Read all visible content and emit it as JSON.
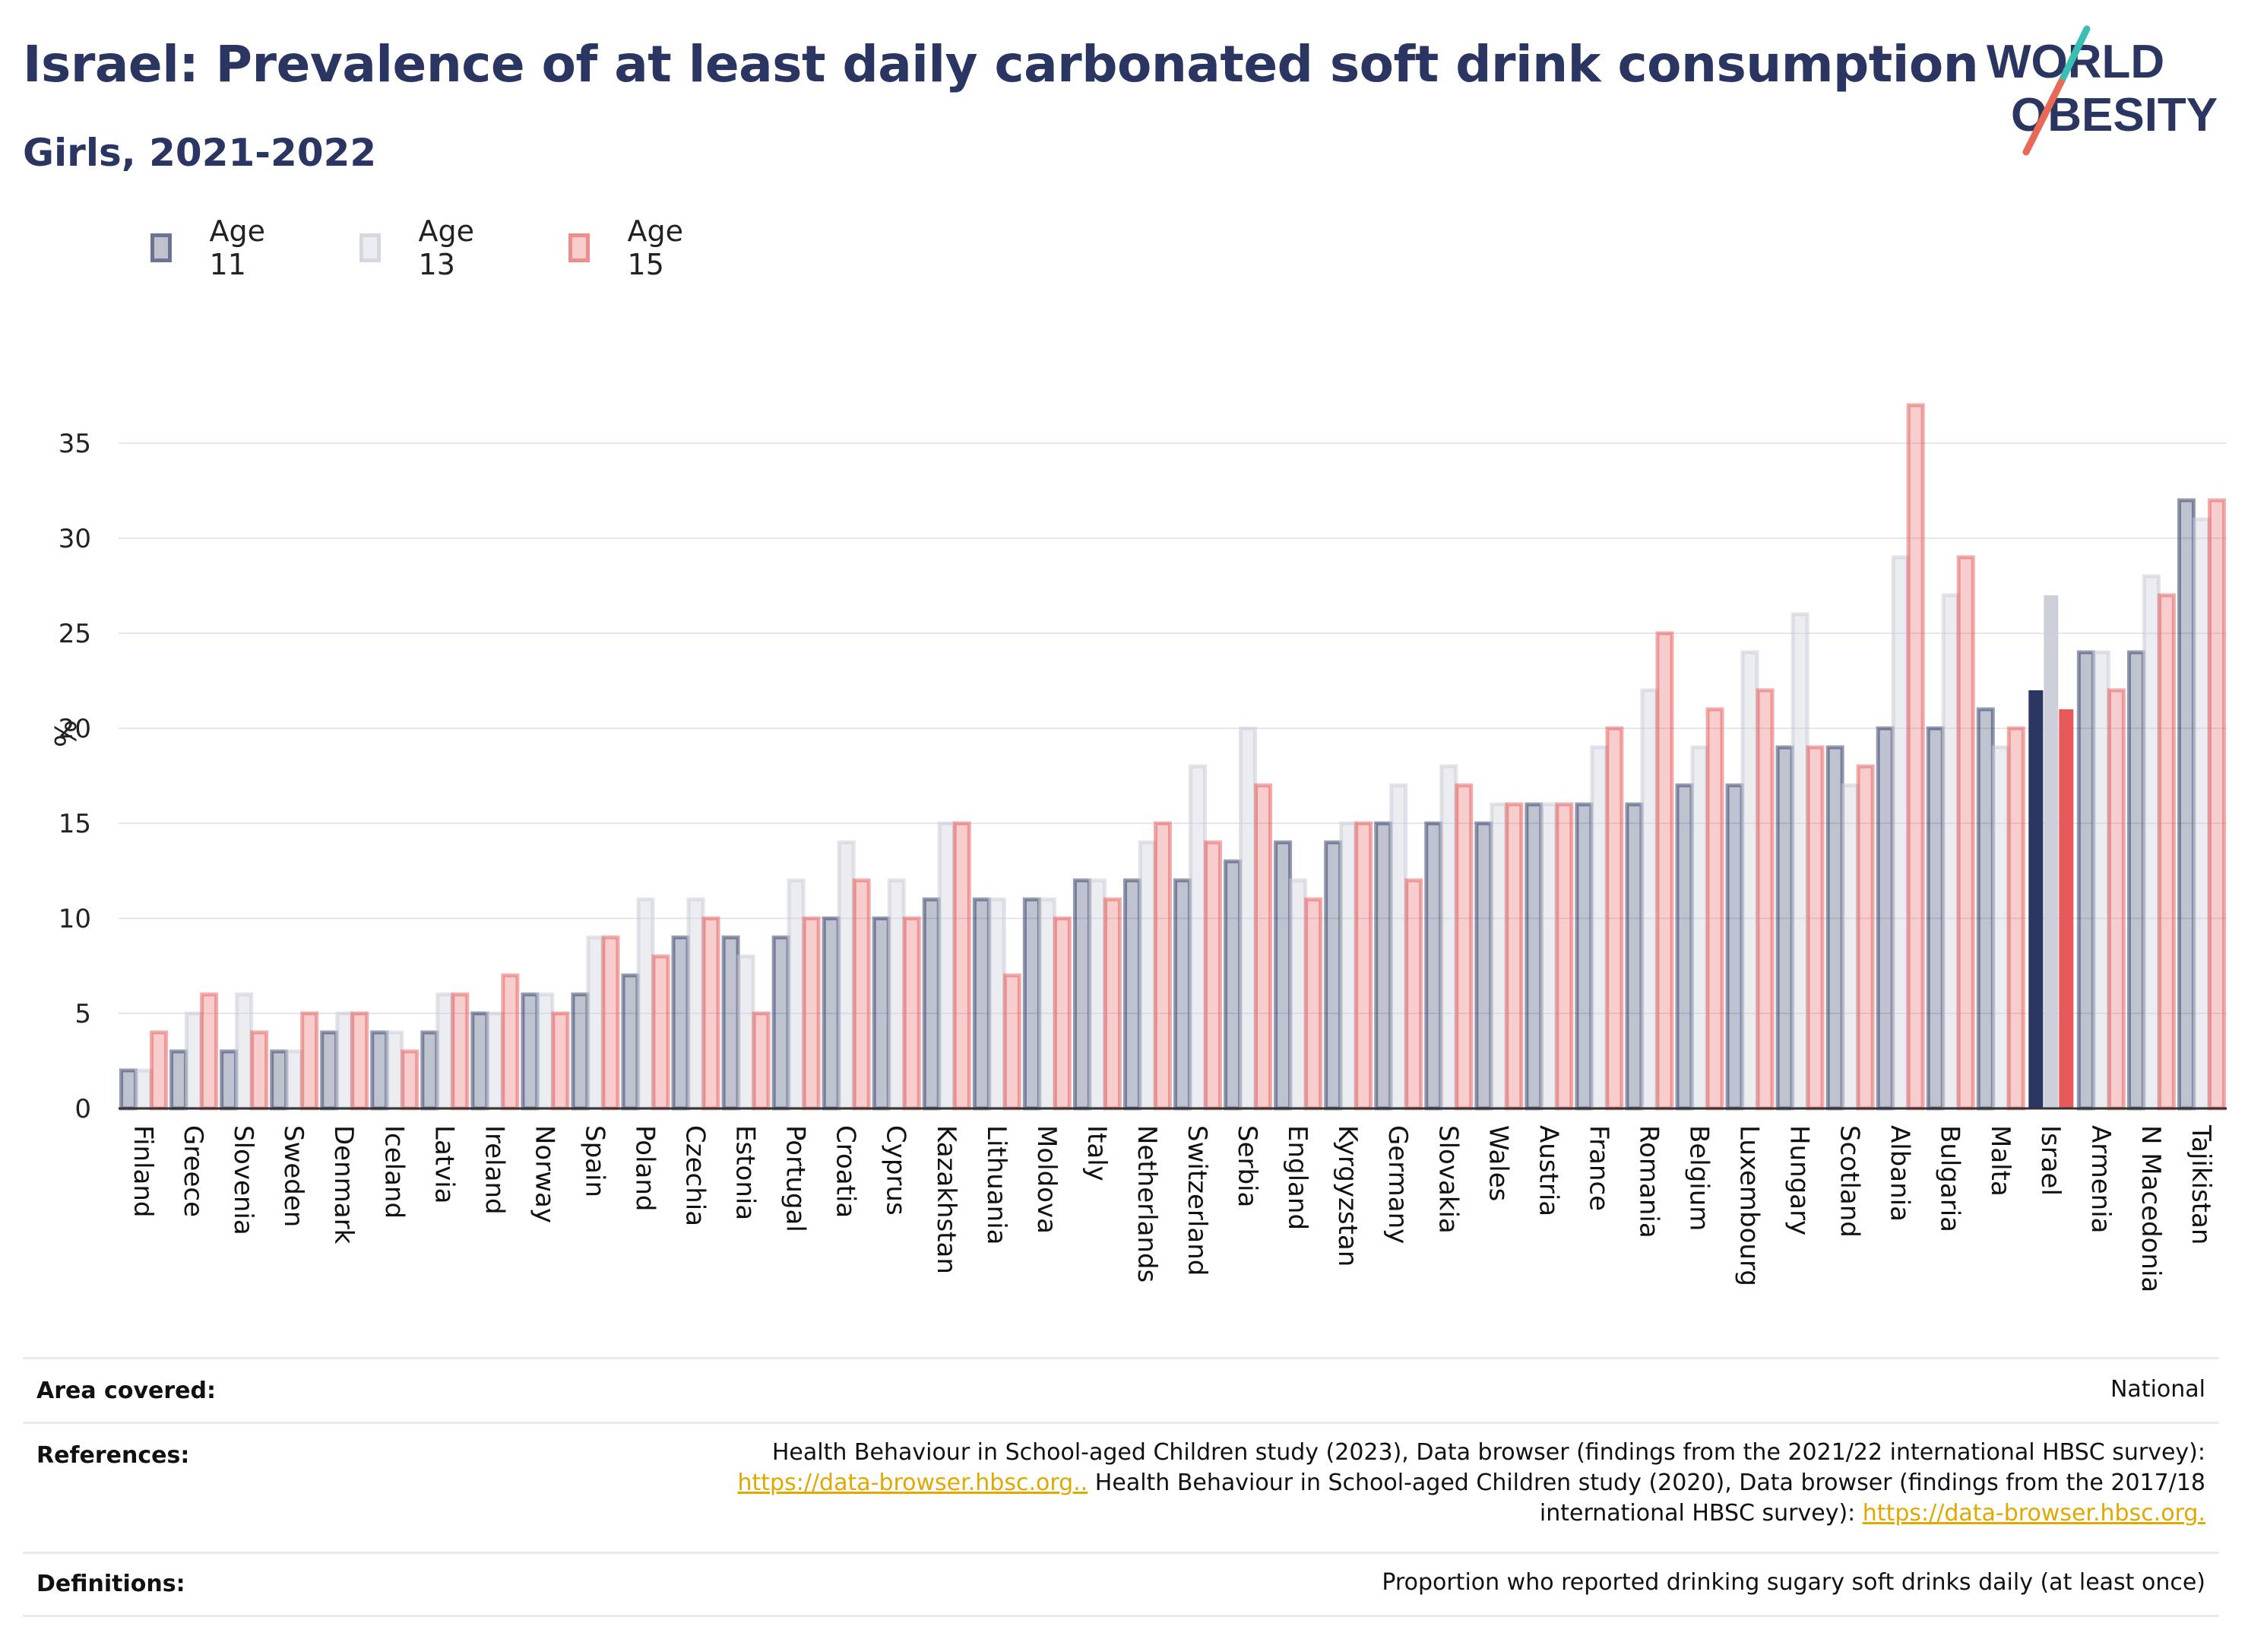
{
  "header": {
    "title": "Israel: Prevalence of at least daily carbonated soft drink consumption",
    "subtitle": "Girls, 2021-2022"
  },
  "logo": {
    "line1": "WORLD",
    "line2": "OBESITY"
  },
  "legend": [
    {
      "label": "Age 11"
    },
    {
      "label": "Age 13"
    },
    {
      "label": "Age 15"
    }
  ],
  "chart_data": {
    "type": "bar",
    "ylabel": "%",
    "ylim": [
      0,
      38
    ],
    "yticks": [
      0,
      5,
      10,
      15,
      20,
      25,
      30,
      35
    ],
    "grid": true,
    "legend_position": "top-left",
    "highlight_category": "Israel",
    "colors": {
      "age11": "#2a3561",
      "age13": "#c8cad6",
      "age15": "#e85a5a",
      "grid": "#e6e7ee",
      "axis": "#333333"
    },
    "categories": [
      "Finland",
      "Greece",
      "Slovenia",
      "Sweden",
      "Denmark",
      "Iceland",
      "Latvia",
      "Ireland",
      "Norway",
      "Spain",
      "Poland",
      "Czechia",
      "Estonia",
      "Portugal",
      "Croatia",
      "Cyprus",
      "Kazakhstan",
      "Lithuania",
      "Moldova",
      "Italy",
      "Netherlands",
      "Switzerland",
      "Serbia",
      "England",
      "Kyrgyzstan",
      "Germany",
      "Slovakia",
      "Wales",
      "Austria",
      "France",
      "Romania",
      "Belgium",
      "Luxembourg",
      "Hungary",
      "Scotland",
      "Albania",
      "Bulgaria",
      "Malta",
      "Israel",
      "Armenia",
      "N Macedonia",
      "Tajikistan"
    ],
    "series": [
      {
        "name": "Age 11",
        "values": [
          2,
          3,
          3,
          3,
          4,
          4,
          4,
          5,
          6,
          6,
          7,
          9,
          9,
          9,
          10,
          10,
          11,
          11,
          11,
          12,
          12,
          12,
          13,
          14,
          14,
          15,
          15,
          15,
          16,
          16,
          16,
          17,
          17,
          19,
          19,
          20,
          20,
          21,
          22,
          24,
          24,
          32
        ]
      },
      {
        "name": "Age 13",
        "values": [
          2,
          5,
          6,
          3,
          5,
          4,
          6,
          5,
          6,
          9,
          11,
          11,
          8,
          12,
          14,
          12,
          15,
          11,
          11,
          12,
          14,
          18,
          20,
          12,
          15,
          17,
          18,
          16,
          16,
          19,
          22,
          19,
          24,
          26,
          17,
          29,
          27,
          19,
          27,
          24,
          28,
          31
        ]
      },
      {
        "name": "Age 15",
        "values": [
          4,
          6,
          4,
          5,
          5,
          3,
          6,
          7,
          5,
          9,
          8,
          10,
          5,
          10,
          12,
          10,
          15,
          7,
          10,
          11,
          15,
          14,
          17,
          11,
          15,
          12,
          17,
          16,
          16,
          20,
          25,
          21,
          22,
          19,
          18,
          37,
          29,
          20,
          21,
          22,
          27,
          32
        ]
      }
    ]
  },
  "footer": {
    "area_label": "Area covered:",
    "area_value": "National",
    "references_label": "References:",
    "ref_line1": "Health Behaviour in School-aged Children study (2023), Data browser (findings from the 2021/22 international HBSC survey):",
    "ref_link1": "https://data-browser.hbsc.org..",
    "ref_line2b": " Health Behaviour in School-aged Children study (2020), Data browser (findings from the 2017/18",
    "ref_line3a": "international HBSC survey): ",
    "ref_link2": "https://data-browser.hbsc.org.",
    "definitions_label": "Definitions:",
    "definitions_value": "Proportion who reported drinking sugary soft drinks daily (at least once)"
  }
}
